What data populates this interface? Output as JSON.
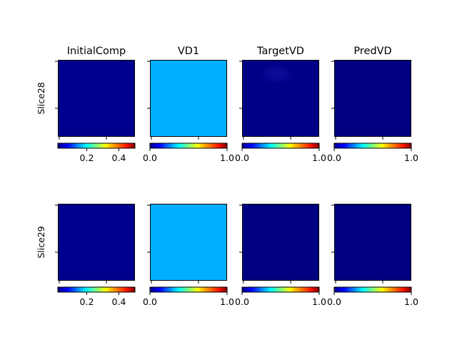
{
  "chart_data": {
    "type": "heatmap",
    "colormap": "jet",
    "columns": [
      "InitialComp",
      "VD1",
      "TargetVD",
      "PredVD"
    ],
    "rows": [
      "Slice28",
      "Slice29"
    ],
    "colorbar_ranges": [
      [
        0.02,
        0.5
      ],
      [
        0.0,
        1.0
      ],
      [
        0.0,
        1.0
      ],
      [
        0.0,
        1.0
      ]
    ],
    "colorbar_ticks": [
      [
        "0.2",
        "0.4"
      ],
      [
        "0.0",
        "1.0"
      ],
      [
        "0.0",
        "1.0"
      ],
      [
        "0.0",
        "1.0"
      ]
    ],
    "panels": [
      {
        "row": "Slice28",
        "column": "InitialComp",
        "approx_value": 0.03,
        "color": "#00008f"
      },
      {
        "row": "Slice28",
        "column": "VD1",
        "approx_value": 0.32,
        "color": "#00b0ff"
      },
      {
        "row": "Slice28",
        "column": "TargetVD",
        "approx_value": 0.02,
        "color": "#000086"
      },
      {
        "row": "Slice28",
        "column": "PredVD",
        "approx_value": 0.01,
        "color": "#000080"
      },
      {
        "row": "Slice29",
        "column": "InitialComp",
        "approx_value": 0.03,
        "color": "#00008f"
      },
      {
        "row": "Slice29",
        "column": "VD1",
        "approx_value": 0.32,
        "color": "#00b0ff"
      },
      {
        "row": "Slice29",
        "column": "TargetVD",
        "approx_value": 0.01,
        "color": "#000080"
      },
      {
        "row": "Slice29",
        "column": "PredVD",
        "approx_value": 0.01,
        "color": "#000080"
      }
    ],
    "grid": false
  }
}
